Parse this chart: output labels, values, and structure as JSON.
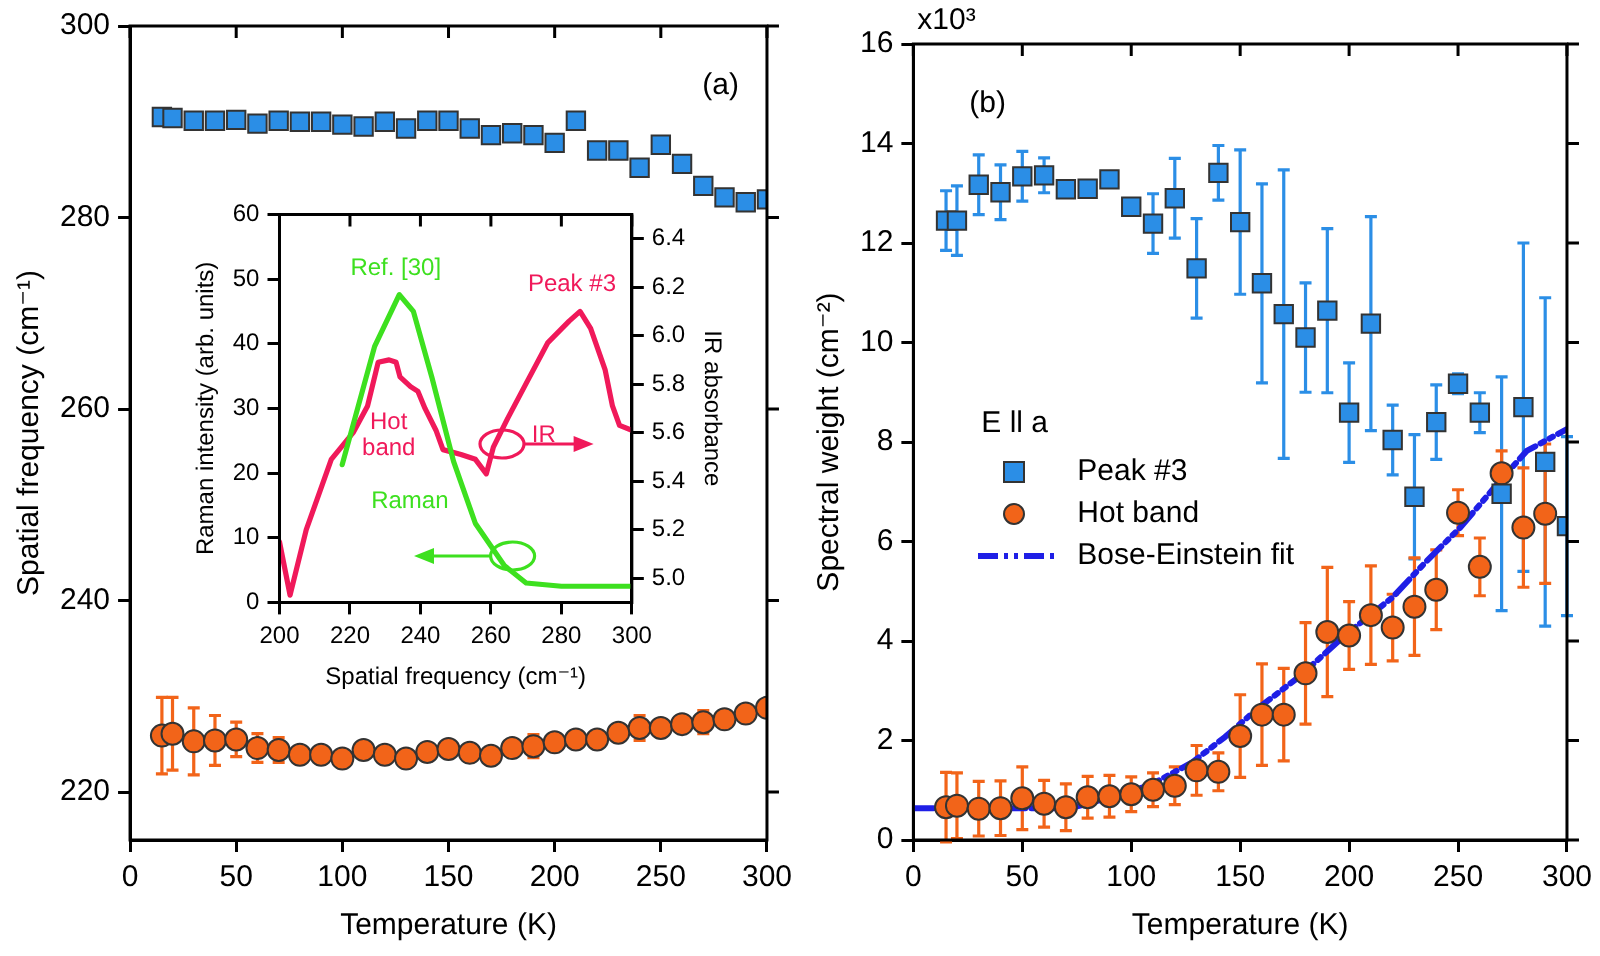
{
  "chart_data": [
    {
      "type": "scatter",
      "xlabel": "Temperature (K)",
      "ylabel": "Spatial frequency (cm⁻¹)",
      "annotations": [
        "(a)"
      ],
      "xlim": [
        0,
        300
      ],
      "xticks": [
        0,
        50,
        100,
        150,
        200,
        250,
        300
      ],
      "ylim": [
        215,
        300
      ],
      "yticks": [
        220,
        240,
        260,
        280,
        300
      ],
      "grid": false,
      "x": [
        15,
        20,
        30,
        40,
        50,
        60,
        70,
        80,
        90,
        100,
        110,
        120,
        130,
        140,
        150,
        160,
        170,
        180,
        190,
        200,
        210,
        220,
        230,
        240,
        250,
        260,
        270,
        280,
        290,
        300
      ],
      "series": [
        {
          "color": "#2b8ee6",
          "marker": "square",
          "values": [
            290.5,
            290.4,
            290.1,
            290.1,
            290.2,
            289.8,
            290.1,
            290.0,
            290.0,
            289.7,
            289.5,
            290.0,
            289.3,
            290.1,
            290.1,
            289.3,
            288.6,
            288.8,
            288.6,
            287.8,
            290.1,
            287.0,
            287.0,
            285.2,
            287.6,
            285.6,
            283.3,
            282.1,
            281.6,
            281.9
          ]
        },
        {
          "color": "#f26419",
          "marker": "circle",
          "values": [
            225.9,
            226.1,
            225.3,
            225.4,
            225.5,
            224.6,
            224.4,
            223.9,
            223.9,
            223.5,
            224.4,
            223.9,
            223.5,
            224.2,
            224.5,
            224.1,
            223.8,
            224.6,
            224.8,
            225.2,
            225.5,
            225.5,
            226.2,
            226.7,
            226.7,
            227.1,
            227.3,
            227.6,
            228.2,
            228.8
          ],
          "errors": [
            4,
            3.8,
            3.5,
            2.6,
            1.8,
            1.5,
            1.3,
            null,
            null,
            null,
            null,
            null,
            null,
            null,
            null,
            null,
            null,
            null,
            1.2,
            null,
            null,
            null,
            null,
            1.3,
            null,
            null,
            1.2,
            null,
            null,
            null
          ]
        }
      ]
    },
    {
      "type": "line",
      "xlabel": "Spatial frequency (cm⁻¹)",
      "ylabel": "Raman intensity (arb. units)",
      "y2label": "IR absorbance",
      "xlim": [
        200,
        300
      ],
      "xticks": [
        200,
        220,
        240,
        260,
        280,
        300
      ],
      "ylim": [
        0,
        60
      ],
      "yticks": [
        0,
        10,
        20,
        30,
        40,
        50,
        60
      ],
      "y2lim": [
        4.9,
        6.5
      ],
      "y2ticks": [
        {
          "value": 5,
          "label": "5.0"
        },
        5.2,
        5.4,
        5.6,
        5.8,
        {
          "value": 6,
          "label": "6.0"
        },
        6.2,
        6.4
      ],
      "grid": false,
      "line_style": "solid",
      "marker": "none",
      "annotations": [
        "Ref. [30]",
        "Peak #3",
        "Hot\nband",
        "IR",
        "Raman"
      ],
      "series": [
        {
          "color": "#3de01f",
          "x": [
            217.8,
            227,
            234,
            238,
            243.3,
            249.4,
            255.6,
            263.8,
            270,
            280,
            300
          ],
          "values": [
            21.3,
            39.6,
            47.6,
            45,
            34.7,
            21.8,
            12.2,
            5.7,
            3,
            2.5,
            2.5
          ]
        },
        {
          "color": "#f0195a",
          "axis": "y2",
          "x": [
            200,
            203,
            207.6,
            214.7,
            220.9,
            225,
            228,
            231.1,
            233.1,
            234.2,
            237.2,
            239.3,
            241.3,
            244.4,
            246.4,
            251.5,
            255.6,
            258.7,
            260.7,
            264.8,
            269.9,
            276.1,
            282.2,
            285.3,
            288.3,
            292.4,
            294.5,
            296.5,
            300
          ],
          "values": [
            5.15,
            4.93,
            5.2,
            5.49,
            5.6,
            5.71,
            5.89,
            5.9,
            5.89,
            5.83,
            5.79,
            5.77,
            5.7,
            5.61,
            5.53,
            5.51,
            5.49,
            5.43,
            5.54,
            5.66,
            5.8,
            5.97,
            6.06,
            6.1,
            6.03,
            5.86,
            5.71,
            5.63,
            5.61
          ]
        }
      ]
    },
    {
      "type": "scatter",
      "xlabel": "Temperature (K)",
      "ylabel": "Spectral weight (cm⁻²)",
      "annotations": [
        "(b)",
        "x10³"
      ],
      "xlim": [
        0,
        300
      ],
      "xticks": [
        0,
        50,
        100,
        150,
        200,
        250,
        300
      ],
      "ylim": [
        0,
        16
      ],
      "yticks": [
        0,
        2,
        4,
        6,
        8,
        10,
        12,
        14,
        16
      ],
      "grid": false,
      "legend": "left",
      "legend_title": "E ll a",
      "x": [
        15,
        20,
        30,
        40,
        50,
        60,
        70,
        80,
        90,
        100,
        110,
        120,
        130,
        140,
        150,
        160,
        170,
        180,
        190,
        200,
        210,
        220,
        230,
        240,
        250,
        260,
        270,
        280,
        290,
        300
      ],
      "series": [
        {
          "name": "Peak #3",
          "color": "#2b8ee6",
          "marker": "square",
          "values": [
            12.45,
            12.45,
            13.17,
            13.02,
            13.34,
            13.36,
            13.08,
            13.09,
            13.28,
            12.73,
            12.39,
            12.9,
            11.49,
            13.41,
            12.42,
            11.19,
            10.57,
            10.1,
            10.64,
            8.59,
            10.38,
            8.04,
            6.9,
            8.4,
            9.17,
            8.59,
            6.96,
            8.7,
            7.6,
            6.31
          ],
          "errors": [
            0.6,
            0.7,
            0.6,
            0.55,
            0.5,
            0.35,
            null,
            null,
            null,
            null,
            0.6,
            0.8,
            1.0,
            0.55,
            1.45,
            2.0,
            2.9,
            1.1,
            1.65,
            1.0,
            2.15,
            0.7,
            1.25,
            0.75,
            0.2,
            0.4,
            2.35,
            3.3,
            3.3,
            1.8
          ]
        },
        {
          "name": "Hot band",
          "color": "#f26419",
          "marker": "circle",
          "values": [
            0.66,
            0.69,
            0.63,
            0.64,
            0.84,
            0.73,
            0.66,
            0.86,
            0.88,
            0.92,
            1.01,
            1.09,
            1.4,
            1.37,
            2.09,
            2.52,
            2.52,
            3.35,
            4.18,
            4.11,
            4.52,
            4.27,
            4.69,
            5.03,
            6.58,
            5.49,
            7.37,
            6.28,
            6.56,
            null
          ],
          "errors": [
            0.7,
            0.66,
            0.55,
            0.55,
            0.63,
            0.47,
            0.47,
            0.42,
            0.42,
            0.35,
            0.34,
            0.38,
            0.5,
            0.38,
            0.83,
            1.02,
            0.93,
            1.02,
            1.3,
            0.68,
            0.99,
            0.67,
            0.98,
            0.8,
            0.46,
            0.58,
            0.45,
            1.2,
            1.4,
            null
          ]
        },
        {
          "name": "Bose-Einstein fit",
          "type": "line",
          "color": "#1f1fe6",
          "marker": "none",
          "line_style": "dashed",
          "x": [
            0,
            72,
            91,
            109,
            128,
            143,
            158,
            177,
            198,
            220,
            235,
            251,
            266,
            281.5,
            300
          ],
          "values": [
            0.64,
            0.64,
            0.86,
            1.11,
            1.56,
            2.07,
            2.64,
            3.28,
            4.11,
            4.88,
            5.58,
            6.28,
            7.05,
            7.82,
            8.26
          ]
        }
      ]
    }
  ]
}
